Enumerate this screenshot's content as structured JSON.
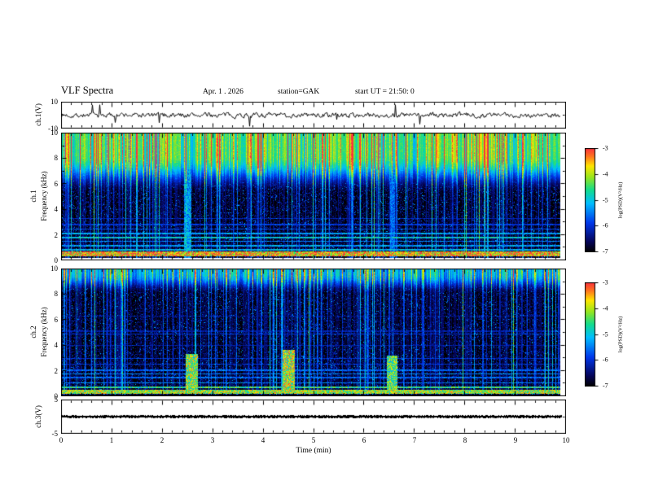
{
  "title": "VLF Spectra",
  "header": {
    "date": "Apr. 1 . 2026",
    "station": "station=GAK",
    "start_ut": "start UT =  21:50: 0"
  },
  "xaxis": {
    "label": "Time (min)",
    "min": 0,
    "max": 10,
    "ticks": [
      0,
      1,
      2,
      3,
      4,
      5,
      6,
      7,
      8,
      9,
      10
    ]
  },
  "colorbar": {
    "label": "log(PSD)(V²/Hz)",
    "min": -7,
    "max": -3,
    "ticks": [
      -3,
      -4,
      -5,
      -6,
      -7
    ]
  },
  "chart_data": [
    {
      "type": "line",
      "name": "ch1-voltage",
      "ylabel": "ch.1(V)",
      "ylim": [
        -10,
        10
      ],
      "yticks": [
        10,
        -10
      ],
      "character": "continuous broadband noise about 0 V, ~±3 V, with impulsive spikes to ~±8 V",
      "render": {
        "seed": 7,
        "noise_v": 1.6,
        "spike_p": 0.015,
        "spike_v": 6.5
      }
    },
    {
      "type": "heatmap",
      "name": "ch1-spectrogram",
      "channel": "ch.1",
      "ylabel": "Frequency (kHz)",
      "ylim": [
        0,
        10
      ],
      "yticks": [
        10,
        8,
        6,
        4,
        2,
        0
      ],
      "zlabel": "log(PSD)(V²/Hz)",
      "zlim": [
        -7,
        -3
      ],
      "features": "bright broadband emission 6-10 kHz (green/yellow), dense vertical sferic streaks, narrowband horizontal lines below 3.5 kHz, intense red band near 0.5 kHz, white strip below 0.2 kHz",
      "render": {
        "seed": 101,
        "baseAmp": 0.6,
        "profLo": 5.2,
        "profHi": 8.2,
        "strongP": 0.16,
        "weakP": 0.55,
        "bands": [
          [
            0.5,
            0.18,
            1.0
          ],
          [
            0.85,
            0.07,
            0.55
          ],
          [
            1.15,
            0.06,
            0.5
          ],
          [
            1.5,
            0.06,
            0.45
          ],
          [
            1.8,
            0.07,
            0.6
          ],
          [
            2.1,
            0.06,
            0.5
          ],
          [
            2.45,
            0.05,
            0.35
          ],
          [
            2.8,
            0.05,
            0.3
          ],
          [
            3.3,
            0.04,
            0.25
          ]
        ],
        "events": [
          {
            "t": 2.5,
            "flo": 0,
            "fhi": 10,
            "w": 0.07,
            "amp": 0.5
          },
          {
            "t": 6.55,
            "flo": 0,
            "fhi": 10,
            "w": 0.05,
            "amp": 0.4
          }
        ],
        "whiteBelow": 0.22
      }
    },
    {
      "type": "heatmap",
      "name": "ch2-spectrogram",
      "channel": "ch.2",
      "ylabel": "Frequency (kHz)",
      "ylim": [
        0,
        10
      ],
      "yticks": [
        10,
        8,
        6,
        4,
        2,
        0
      ],
      "zlabel": "log(PSD)(V²/Hz)",
      "zlim": [
        -7,
        -3
      ],
      "features": "dark background with dense blue/cyan vertical streaks, green patches near 9-10 kHz, narrow horizontal lines 1-5 kHz, bright yellow-green band below 1 kHz, discrete bright patches near t≈2.6, 4.5, 6.6 min",
      "render": {
        "seed": 202,
        "baseAmp": 0.4,
        "profLo": 8.0,
        "profHi": 9.6,
        "strongP": 0.2,
        "weakP": 0.6,
        "bands": [
          [
            0.35,
            0.15,
            0.85
          ],
          [
            0.7,
            0.09,
            0.7
          ],
          [
            1.05,
            0.05,
            0.45
          ],
          [
            1.45,
            0.05,
            0.4
          ],
          [
            1.75,
            0.05,
            0.45
          ],
          [
            2.05,
            0.05,
            0.4
          ],
          [
            2.5,
            0.04,
            0.3
          ],
          [
            2.95,
            0.04,
            0.3
          ],
          [
            4.0,
            0.04,
            0.22
          ],
          [
            4.85,
            0.04,
            0.3
          ],
          [
            5.1,
            0.04,
            0.22
          ],
          [
            6.3,
            0.03,
            0.18
          ]
        ],
        "events": [
          {
            "t": 2.58,
            "flo": 0.5,
            "fhi": 3.3,
            "w": 0.12,
            "amp": 0.8
          },
          {
            "t": 4.5,
            "flo": 0.5,
            "fhi": 3.6,
            "w": 0.12,
            "amp": 0.85
          },
          {
            "t": 6.55,
            "flo": 0.5,
            "fhi": 3.2,
            "w": 0.1,
            "amp": 0.75
          }
        ],
        "darkBelow": 0.15
      }
    },
    {
      "type": "line",
      "name": "ch3-voltage",
      "ylabel": "ch.3(V)",
      "ylim": [
        -5,
        5
      ],
      "yticks": [
        5,
        -5
      ],
      "value": 0,
      "character": "constant level near 0 V, thick dotted flat trace",
      "render": {
        "seed": 9
      }
    }
  ]
}
